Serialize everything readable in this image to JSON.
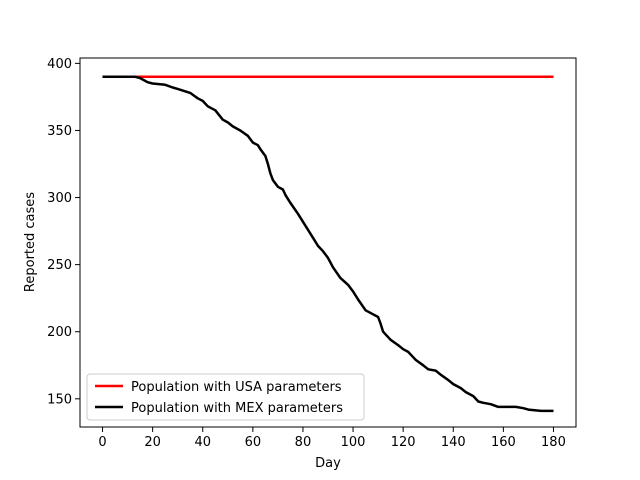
{
  "chart_data": {
    "type": "line",
    "title": "",
    "xlabel": "Day",
    "ylabel": "Reported cases",
    "xlim": [
      -9,
      189
    ],
    "ylim": [
      129,
      404
    ],
    "xticks": [
      0,
      20,
      40,
      60,
      80,
      100,
      120,
      140,
      160,
      180
    ],
    "yticks": [
      150,
      200,
      250,
      300,
      350,
      400
    ],
    "grid": false,
    "legend_position": "lower-left",
    "series": [
      {
        "name": "Population with USA parameters",
        "color": "#ff0000",
        "x": [
          0,
          180
        ],
        "y": [
          390,
          390
        ]
      },
      {
        "name": "Population with MEX parameters",
        "color": "#000000",
        "x": [
          0,
          5,
          10,
          13,
          15,
          18,
          20,
          25,
          28,
          30,
          35,
          38,
          40,
          42,
          45,
          48,
          50,
          52,
          55,
          58,
          60,
          62,
          63,
          65,
          66,
          67,
          68,
          70,
          72,
          73,
          75,
          78,
          80,
          82,
          84,
          86,
          88,
          90,
          92,
          95,
          98,
          100,
          102,
          105,
          108,
          110,
          111,
          112,
          115,
          118,
          120,
          122,
          124,
          125,
          128,
          130,
          133,
          135,
          138,
          140,
          143,
          145,
          148,
          150,
          152,
          155,
          158,
          160,
          162,
          165,
          168,
          170,
          175,
          178,
          180
        ],
        "y": [
          390,
          390,
          390,
          390,
          389,
          386,
          385,
          384,
          382,
          381,
          378,
          374,
          372,
          368,
          365,
          358,
          356,
          353,
          350,
          346,
          341,
          339,
          336,
          331,
          325,
          318,
          313,
          308,
          306,
          302,
          296,
          288,
          282,
          276,
          270,
          264,
          260,
          255,
          248,
          240,
          235,
          230,
          224,
          216,
          213,
          211,
          206,
          200,
          194,
          190,
          187,
          185,
          181,
          179,
          175,
          172,
          171,
          168,
          164,
          161,
          158,
          155,
          152,
          148,
          147,
          146,
          144,
          144,
          144,
          144,
          143,
          142,
          141,
          141,
          141
        ]
      }
    ]
  }
}
